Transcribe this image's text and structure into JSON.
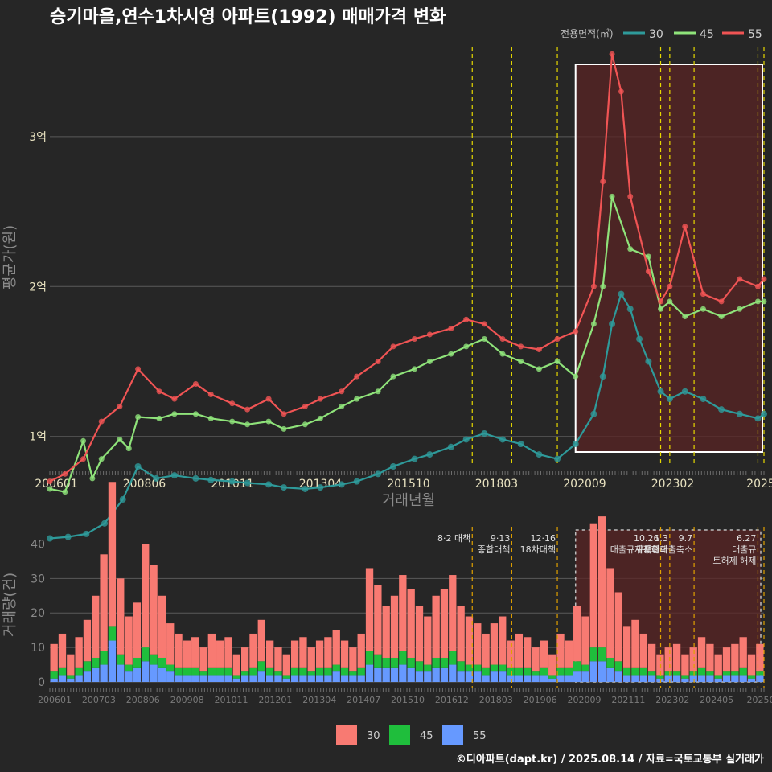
{
  "title": "승기마을,연수1차시영 아파트(1992) 매매가격 변화",
  "caption": "©디아파트(dapt.kr) / 2025.08.14 / 자료=국토교통부 실거래가",
  "legend": {
    "title": "전용면적(㎡)",
    "items": [
      {
        "label": "30",
        "color": "#2e9a9a"
      },
      {
        "label": "45",
        "color": "#8fe37a"
      },
      {
        "label": "55",
        "color": "#f05454"
      }
    ]
  },
  "bottom_legend": {
    "items": [
      {
        "label": "30",
        "color": "#f87a72"
      },
      {
        "label": "45",
        "color": "#1fbe3c"
      },
      {
        "label": "55",
        "color": "#6699ff"
      }
    ]
  },
  "colors": {
    "background": "#262626",
    "grid": "#5a5a5a",
    "highlight_fill": "#5a2424",
    "policy_line": "#e6d800",
    "policy_line_bottom": "#e0a000"
  },
  "policy_labels": [
    {
      "id": "p1",
      "date": "2017-08",
      "lines": [
        "8·2 대책"
      ]
    },
    {
      "id": "p2",
      "date": "2018-09",
      "lines": [
        "9·13",
        "종합대책"
      ]
    },
    {
      "id": "p3",
      "date": "2019-12",
      "lines": [
        "12·16",
        "18차대책"
      ]
    },
    {
      "id": "p4",
      "date": "2022-10",
      "lines": [
        "10.26",
        "대출규제강화"
      ]
    },
    {
      "id": "p5",
      "date": "2023-01",
      "lines": [
        "1.3",
        "규제완화"
      ]
    },
    {
      "id": "p6",
      "date": "2023-09",
      "lines": [
        "9.7",
        "특례대출축소"
      ]
    },
    {
      "id": "p7",
      "date": "2025-06",
      "lines": [
        "6.27",
        "대출규",
        "토허제 해제"
      ]
    }
  ],
  "chart_data": [
    {
      "type": "line",
      "xlabel": "거래년월",
      "ylabel": "평균가(원)",
      "x_ticks": [
        "200601",
        "200806",
        "201011",
        "201304",
        "201510",
        "201803",
        "202009",
        "202302",
        "2025"
      ],
      "y_ticks": [
        {
          "value": 100000000,
          "label": "1억"
        },
        {
          "value": 200000000,
          "label": "2억"
        },
        {
          "value": 300000000,
          "label": "3억"
        }
      ],
      "ylim": [
        80000000,
        360000000
      ],
      "xlim": [
        "2006-01",
        "2025-08"
      ],
      "policy_lines": [
        "2017-08",
        "2018-09",
        "2019-12",
        "2022-10",
        "2023-01",
        "2023-09",
        "2025-06",
        "2025-08"
      ],
      "highlight": {
        "from": "2020-06",
        "to": "2025-08"
      },
      "series": [
        {
          "name": "30",
          "points": [
            [
              "2006-01",
              32000000
            ],
            [
              "2006-07",
              33000000
            ],
            [
              "2007-01",
              35000000
            ],
            [
              "2007-07",
              42000000
            ],
            [
              "2008-01",
              58000000
            ],
            [
              "2008-06",
              80000000
            ],
            [
              "2008-12",
              72000000
            ],
            [
              "2009-06",
              74000000
            ],
            [
              "2010-01",
              72000000
            ],
            [
              "2010-06",
              71000000
            ],
            [
              "2011-01",
              70000000
            ],
            [
              "2011-06",
              69000000
            ],
            [
              "2012-01",
              68000000
            ],
            [
              "2012-06",
              66000000
            ],
            [
              "2013-01",
              65000000
            ],
            [
              "2013-06",
              66000000
            ],
            [
              "2014-01",
              68000000
            ],
            [
              "2014-06",
              70000000
            ],
            [
              "2015-01",
              75000000
            ],
            [
              "2015-06",
              80000000
            ],
            [
              "2016-01",
              85000000
            ],
            [
              "2016-06",
              88000000
            ],
            [
              "2017-01",
              93000000
            ],
            [
              "2017-06",
              98000000
            ],
            [
              "2017-12",
              102000000
            ],
            [
              "2018-06",
              98000000
            ],
            [
              "2018-12",
              95000000
            ],
            [
              "2019-06",
              88000000
            ],
            [
              "2019-12",
              85000000
            ],
            [
              "2020-06",
              95000000
            ],
            [
              "2020-12",
              115000000
            ],
            [
              "2021-03",
              140000000
            ],
            [
              "2021-06",
              175000000
            ],
            [
              "2021-09",
              195000000
            ],
            [
              "2021-12",
              185000000
            ],
            [
              "2022-03",
              165000000
            ],
            [
              "2022-06",
              150000000
            ],
            [
              "2022-10",
              130000000
            ],
            [
              "2023-01",
              125000000
            ],
            [
              "2023-06",
              130000000
            ],
            [
              "2023-12",
              125000000
            ],
            [
              "2024-06",
              118000000
            ],
            [
              "2024-12",
              115000000
            ],
            [
              "2025-06",
              112000000
            ],
            [
              "2025-08",
              115000000
            ]
          ]
        },
        {
          "name": "45",
          "points": [
            [
              "2006-01",
              65000000
            ],
            [
              "2006-06",
              63000000
            ],
            [
              "2006-12",
              97000000
            ],
            [
              "2007-03",
              72000000
            ],
            [
              "2007-06",
              85000000
            ],
            [
              "2007-12",
              98000000
            ],
            [
              "2008-03",
              92000000
            ],
            [
              "2008-06",
              113000000
            ],
            [
              "2009-01",
              112000000
            ],
            [
              "2009-06",
              115000000
            ],
            [
              "2010-01",
              115000000
            ],
            [
              "2010-06",
              112000000
            ],
            [
              "2011-01",
              110000000
            ],
            [
              "2011-06",
              108000000
            ],
            [
              "2012-01",
              110000000
            ],
            [
              "2012-06",
              105000000
            ],
            [
              "2013-01",
              108000000
            ],
            [
              "2013-06",
              112000000
            ],
            [
              "2014-01",
              120000000
            ],
            [
              "2014-06",
              125000000
            ],
            [
              "2015-01",
              130000000
            ],
            [
              "2015-06",
              140000000
            ],
            [
              "2016-01",
              145000000
            ],
            [
              "2016-06",
              150000000
            ],
            [
              "2017-01",
              155000000
            ],
            [
              "2017-06",
              160000000
            ],
            [
              "2017-12",
              165000000
            ],
            [
              "2018-06",
              155000000
            ],
            [
              "2018-12",
              150000000
            ],
            [
              "2019-06",
              145000000
            ],
            [
              "2019-12",
              150000000
            ],
            [
              "2020-06",
              140000000
            ],
            [
              "2020-12",
              175000000
            ],
            [
              "2021-03",
              200000000
            ],
            [
              "2021-06",
              260000000
            ],
            [
              "2021-12",
              225000000
            ],
            [
              "2022-06",
              220000000
            ],
            [
              "2022-10",
              185000000
            ],
            [
              "2023-01",
              190000000
            ],
            [
              "2023-06",
              180000000
            ],
            [
              "2023-12",
              185000000
            ],
            [
              "2024-06",
              180000000
            ],
            [
              "2024-12",
              185000000
            ],
            [
              "2025-06",
              190000000
            ],
            [
              "2025-08",
              190000000
            ]
          ]
        },
        {
          "name": "55",
          "points": [
            [
              "2006-01",
              70000000
            ],
            [
              "2006-06",
              75000000
            ],
            [
              "2006-12",
              85000000
            ],
            [
              "2007-06",
              110000000
            ],
            [
              "2007-12",
              120000000
            ],
            [
              "2008-06",
              145000000
            ],
            [
              "2009-01",
              130000000
            ],
            [
              "2009-06",
              125000000
            ],
            [
              "2010-01",
              135000000
            ],
            [
              "2010-06",
              128000000
            ],
            [
              "2011-01",
              122000000
            ],
            [
              "2011-06",
              118000000
            ],
            [
              "2012-01",
              125000000
            ],
            [
              "2012-06",
              115000000
            ],
            [
              "2013-01",
              120000000
            ],
            [
              "2013-06",
              125000000
            ],
            [
              "2014-01",
              130000000
            ],
            [
              "2014-06",
              140000000
            ],
            [
              "2015-01",
              150000000
            ],
            [
              "2015-06",
              160000000
            ],
            [
              "2016-01",
              165000000
            ],
            [
              "2016-06",
              168000000
            ],
            [
              "2017-01",
              172000000
            ],
            [
              "2017-06",
              178000000
            ],
            [
              "2017-12",
              175000000
            ],
            [
              "2018-06",
              165000000
            ],
            [
              "2018-12",
              160000000
            ],
            [
              "2019-06",
              158000000
            ],
            [
              "2019-12",
              165000000
            ],
            [
              "2020-06",
              170000000
            ],
            [
              "2020-12",
              200000000
            ],
            [
              "2021-03",
              270000000
            ],
            [
              "2021-06",
              355000000
            ],
            [
              "2021-09",
              330000000
            ],
            [
              "2021-12",
              260000000
            ],
            [
              "2022-06",
              210000000
            ],
            [
              "2022-10",
              190000000
            ],
            [
              "2023-01",
              200000000
            ],
            [
              "2023-06",
              240000000
            ],
            [
              "2023-12",
              195000000
            ],
            [
              "2024-06",
              190000000
            ],
            [
              "2024-12",
              205000000
            ],
            [
              "2025-06",
              200000000
            ],
            [
              "2025-08",
              205000000
            ]
          ]
        }
      ]
    },
    {
      "type": "bar",
      "ylabel": "거래량(건)",
      "x_ticks": [
        "200601",
        "200703",
        "200806",
        "200908",
        "201011",
        "201201",
        "201304",
        "201407",
        "201510",
        "201612",
        "201803",
        "201906",
        "202009",
        "202111",
        "202302",
        "202405",
        "20250"
      ],
      "y_ticks": [
        0,
        10,
        20,
        30,
        40
      ],
      "ylim": [
        0,
        45
      ],
      "series": [
        {
          "name": "30",
          "values": [
            8,
            10,
            6,
            9,
            12,
            18,
            28,
            42,
            22,
            14,
            16,
            30,
            26,
            18,
            12,
            10,
            8,
            9,
            7,
            10,
            8,
            9,
            6,
            7,
            10,
            12,
            8,
            7,
            6,
            8,
            9,
            7,
            8,
            9,
            10,
            8,
            7,
            10,
            24,
            20,
            15,
            18,
            22,
            20,
            16,
            14,
            18,
            20,
            22,
            16,
            14,
            12,
            10,
            12,
            14,
            8,
            10,
            9,
            7,
            8,
            6,
            10,
            8,
            16,
            14,
            36,
            38,
            26,
            20,
            12,
            14,
            10,
            8,
            6,
            7,
            8,
            6,
            7,
            9,
            8,
            6,
            7,
            8,
            9,
            6,
            8
          ]
        },
        {
          "name": "45",
          "values": [
            2,
            2,
            1,
            2,
            3,
            3,
            4,
            4,
            3,
            2,
            3,
            4,
            3,
            3,
            2,
            2,
            2,
            2,
            1,
            2,
            2,
            2,
            1,
            1,
            2,
            3,
            2,
            1,
            1,
            2,
            2,
            1,
            2,
            2,
            2,
            2,
            1,
            2,
            4,
            4,
            3,
            3,
            4,
            3,
            3,
            2,
            3,
            3,
            4,
            3,
            2,
            2,
            2,
            2,
            2,
            2,
            2,
            2,
            1,
            2,
            1,
            2,
            2,
            3,
            2,
            4,
            4,
            3,
            3,
            2,
            2,
            2,
            1,
            1,
            1,
            1,
            1,
            1,
            2,
            1,
            1,
            1,
            1,
            2,
            1,
            1
          ]
        },
        {
          "name": "55",
          "values": [
            1,
            2,
            1,
            2,
            3,
            4,
            5,
            12,
            5,
            3,
            4,
            6,
            5,
            4,
            3,
            2,
            2,
            2,
            2,
            2,
            2,
            2,
            1,
            2,
            2,
            3,
            2,
            2,
            1,
            2,
            2,
            2,
            2,
            2,
            3,
            2,
            2,
            2,
            5,
            4,
            4,
            4,
            5,
            4,
            3,
            3,
            4,
            4,
            5,
            3,
            3,
            3,
            2,
            3,
            3,
            2,
            2,
            2,
            2,
            2,
            1,
            2,
            2,
            3,
            3,
            6,
            6,
            4,
            3,
            2,
            2,
            2,
            2,
            1,
            2,
            2,
            1,
            2,
            2,
            2,
            1,
            2,
            2,
            2,
            1,
            2
          ]
        }
      ]
    }
  ]
}
